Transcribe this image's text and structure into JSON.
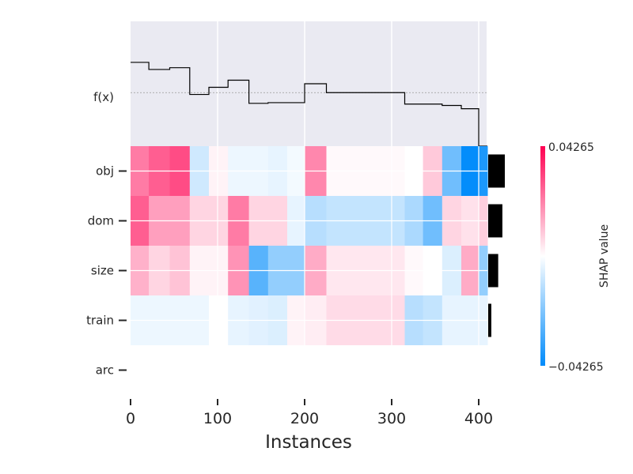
{
  "chart_data": {
    "type": "heatmap",
    "title": "",
    "xlabel": "Instances",
    "x_ticks": [
      0,
      100,
      200,
      300,
      400
    ],
    "xlim": [
      0,
      410
    ],
    "fx_label": "f(x)",
    "features": [
      "obj",
      "dom",
      "size",
      "train",
      "arc"
    ],
    "segment_bounds": [
      0,
      21,
      45,
      68,
      90,
      112,
      136,
      158,
      180,
      200,
      225,
      250,
      270,
      292,
      315,
      336,
      358,
      380,
      400,
      410
    ],
    "shap_values": {
      "obj": [
        0.022,
        0.027,
        0.03,
        -0.008,
        0.002,
        -0.003,
        -0.003,
        -0.004,
        -0.002,
        0.02,
        0.001,
        0.001,
        0.001,
        0.001,
        0.0,
        0.009,
        -0.024,
        -0.042,
        -0.038
      ],
      "dom": [
        0.027,
        0.016,
        0.016,
        0.007,
        0.007,
        0.022,
        0.007,
        0.007,
        -0.004,
        -0.012,
        -0.01,
        -0.01,
        -0.01,
        -0.01,
        -0.014,
        -0.024,
        0.007,
        0.005,
        0.008
      ],
      "size": [
        0.013,
        0.007,
        0.01,
        0.002,
        0.002,
        0.018,
        -0.028,
        -0.018,
        -0.018,
        0.014,
        0.004,
        0.004,
        0.004,
        0.004,
        0.001,
        0.0,
        -0.006,
        0.014,
        -0.018
      ],
      "train": [
        -0.003,
        -0.003,
        -0.003,
        -0.003,
        0.0,
        -0.004,
        -0.005,
        -0.006,
        0.002,
        0.003,
        0.006,
        0.006,
        0.006,
        0.006,
        -0.012,
        -0.01,
        -0.004,
        -0.004,
        -0.004
      ],
      "arc": [
        0.0,
        0.0,
        0.0,
        0.0,
        0.0,
        0.0,
        0.0,
        0.0,
        0.0,
        0.0,
        0.0,
        0.0,
        0.0,
        0.0,
        0.0,
        0.0,
        0.0,
        0.0,
        0.0
      ]
    },
    "fx_steps": [
      {
        "x0": 0,
        "x1": 21,
        "v": 0.085
      },
      {
        "x0": 21,
        "x1": 45,
        "v": 0.065
      },
      {
        "x0": 45,
        "x1": 68,
        "v": 0.07
      },
      {
        "x0": 68,
        "x1": 90,
        "v": -0.005
      },
      {
        "x0": 90,
        "x1": 112,
        "v": 0.015
      },
      {
        "x0": 112,
        "x1": 136,
        "v": 0.035
      },
      {
        "x0": 136,
        "x1": 158,
        "v": -0.03
      },
      {
        "x0": 158,
        "x1": 180,
        "v": -0.028
      },
      {
        "x0": 180,
        "x1": 200,
        "v": -0.028
      },
      {
        "x0": 200,
        "x1": 225,
        "v": 0.025
      },
      {
        "x0": 225,
        "x1": 315,
        "v": 0.0
      },
      {
        "x0": 315,
        "x1": 358,
        "v": -0.032
      },
      {
        "x0": 358,
        "x1": 380,
        "v": -0.036
      },
      {
        "x0": 380,
        "x1": 400,
        "v": -0.045
      },
      {
        "x0": 400,
        "x1": 410,
        "v": -0.15
      }
    ],
    "fx_ylim": [
      -0.15,
      0.2
    ],
    "fx_baseline": 0.0,
    "feature_importance": {
      "obj": 0.0123,
      "dom": 0.0105,
      "size": 0.0074,
      "train": 0.0023,
      "arc": 0.0
    },
    "colorbar": {
      "label": "SHAP value",
      "max_label": "0.04265",
      "min_label": "−0.04265",
      "vmin": -0.04265,
      "vmax": 0.04265,
      "color_positive": "#ff0051",
      "color_negative": "#008bfb"
    },
    "grid": true,
    "legend": "none"
  }
}
